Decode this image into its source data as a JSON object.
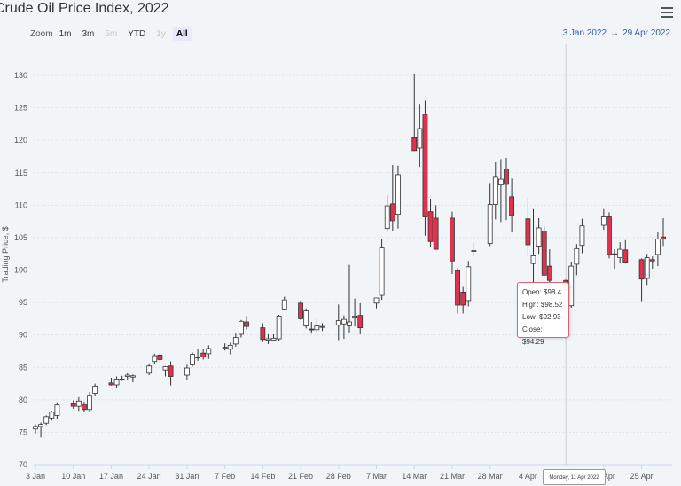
{
  "title": "Crude Oil Price Index, 2022",
  "zoom": {
    "label": "Zoom",
    "buttons": [
      {
        "label": "1m",
        "state": "normal"
      },
      {
        "label": "3m",
        "state": "normal"
      },
      {
        "label": "6m",
        "state": "disabled"
      },
      {
        "label": "YTD",
        "state": "normal"
      },
      {
        "label": "1y",
        "state": "disabled"
      },
      {
        "label": "All",
        "state": "selected"
      }
    ]
  },
  "range": {
    "from": "3 Jan 2022",
    "sep": "→",
    "to": "29 Apr 2022"
  },
  "menu_icon": "hamburger-menu-icon",
  "tooltip": {
    "open": "Open: $98.4",
    "high": "High: $98.52",
    "low": "Low: $92.93",
    "close": "Close: $94.29"
  },
  "crosshair_label": "Monday, 11 Apr 2022",
  "colors": {
    "up": "#ffffff",
    "down": "#e0324f",
    "outline": "#333333",
    "accent": "#335cad"
  },
  "chart_data": {
    "type": "candlestick",
    "title": "Crude Oil Price Index, 2022",
    "ylabel": "Trading Price, $",
    "ylim": [
      70,
      132
    ],
    "yticks": [
      70,
      75,
      80,
      85,
      90,
      95,
      100,
      105,
      110,
      115,
      120,
      125,
      130
    ],
    "xlim": [
      "2022-01-03",
      "2022-04-29"
    ],
    "xticks": [
      {
        "date": "2022-01-03",
        "label": "3 Jan"
      },
      {
        "date": "2022-01-10",
        "label": "10 Jan"
      },
      {
        "date": "2022-01-17",
        "label": "17 Jan"
      },
      {
        "date": "2022-01-24",
        "label": "24 Jan"
      },
      {
        "date": "2022-01-31",
        "label": "31 Jan"
      },
      {
        "date": "2022-02-07",
        "label": "7 Feb"
      },
      {
        "date": "2022-02-14",
        "label": "14 Feb"
      },
      {
        "date": "2022-02-21",
        "label": "21 Feb"
      },
      {
        "date": "2022-02-28",
        "label": "28 Feb"
      },
      {
        "date": "2022-03-07",
        "label": "7 Mar"
      },
      {
        "date": "2022-03-14",
        "label": "14 Mar"
      },
      {
        "date": "2022-03-21",
        "label": "21 Mar"
      },
      {
        "date": "2022-03-28",
        "label": "28 Mar"
      },
      {
        "date": "2022-04-04",
        "label": "4 Apr"
      },
      {
        "date": "2022-04-18",
        "label": "18 Apr"
      },
      {
        "date": "2022-04-25",
        "label": "25 Apr"
      }
    ],
    "grid": true,
    "crosshair_date": "2022-04-11",
    "columns": [
      "date",
      "open",
      "high",
      "low",
      "close"
    ],
    "series": [
      [
        "2022-01-03",
        75.5,
        76.2,
        74.8,
        75.9
      ],
      [
        "2022-01-04",
        75.9,
        76.5,
        74.2,
        76.2
      ],
      [
        "2022-01-05",
        76.4,
        77.6,
        76.1,
        77.4
      ],
      [
        "2022-01-06",
        77.2,
        78.3,
        76.8,
        78.1
      ],
      [
        "2022-01-07",
        77.6,
        79.6,
        77.1,
        79.2
      ],
      [
        "2022-01-10",
        79.5,
        79.9,
        78.6,
        79.0
      ],
      [
        "2022-01-11",
        79.0,
        80.4,
        78.3,
        79.8
      ],
      [
        "2022-01-12",
        79.3,
        79.7,
        78.2,
        78.5
      ],
      [
        "2022-01-13",
        78.5,
        81.2,
        78.1,
        80.7
      ],
      [
        "2022-01-14",
        81.0,
        82.5,
        80.6,
        82.1
      ],
      [
        "2022-01-17",
        82.6,
        83.4,
        82.2,
        82.3
      ],
      [
        "2022-01-18",
        82.3,
        83.6,
        81.9,
        83.2
      ],
      [
        "2022-01-19",
        83.2,
        83.7,
        82.9,
        83.1
      ],
      [
        "2022-01-20",
        83.6,
        84.1,
        83.1,
        83.8
      ],
      [
        "2022-01-21",
        83.5,
        83.9,
        82.7,
        83.7
      ],
      [
        "2022-01-24",
        84.1,
        85.6,
        83.8,
        85.2
      ],
      [
        "2022-01-25",
        85.9,
        87.1,
        85.5,
        86.8
      ],
      [
        "2022-01-26",
        86.9,
        87.2,
        85.8,
        86.2
      ],
      [
        "2022-01-27",
        84.6,
        85.2,
        83.6,
        85.1
      ],
      [
        "2022-01-28",
        85.2,
        85.9,
        82.2,
        83.6
      ],
      [
        "2022-01-31",
        83.8,
        85.4,
        83.1,
        84.9
      ],
      [
        "2022-02-01",
        85.4,
        87.3,
        85.1,
        87.0
      ],
      [
        "2022-02-02",
        86.6,
        87.8,
        86.0,
        86.5
      ],
      [
        "2022-02-03",
        87.2,
        87.8,
        86.2,
        86.6
      ],
      [
        "2022-02-04",
        87.1,
        88.4,
        86.3,
        87.9
      ],
      [
        "2022-02-07",
        88.0,
        88.7,
        87.6,
        88.1
      ],
      [
        "2022-02-08",
        87.8,
        88.8,
        87.0,
        88.4
      ],
      [
        "2022-02-09",
        88.6,
        90.3,
        88.2,
        89.6
      ],
      [
        "2022-02-10",
        90.1,
        92.3,
        89.6,
        92.1
      ],
      [
        "2022-02-11",
        92.0,
        92.9,
        90.8,
        91.3
      ],
      [
        "2022-02-14",
        91.1,
        91.8,
        88.9,
        89.3
      ],
      [
        "2022-02-15",
        89.2,
        90.1,
        88.6,
        89.4
      ],
      [
        "2022-02-16",
        89.2,
        90.1,
        89.0,
        89.5
      ],
      [
        "2022-02-17",
        89.4,
        93.1,
        89.1,
        92.9
      ],
      [
        "2022-02-18",
        94.0,
        95.9,
        93.8,
        95.4
      ],
      [
        "2022-02-21",
        94.9,
        95.3,
        92.3,
        92.5
      ],
      [
        "2022-02-22",
        91.4,
        94.1,
        91.0,
        93.7
      ],
      [
        "2022-02-23",
        90.9,
        92.0,
        90.2,
        90.8
      ],
      [
        "2022-02-24",
        90.8,
        92.5,
        90.3,
        91.4
      ],
      [
        "2022-02-25",
        91.2,
        91.8,
        90.6,
        91.3
      ],
      [
        "2022-02-28",
        91.5,
        94.7,
        89.2,
        92.2
      ],
      [
        "2022-03-01",
        91.7,
        93.0,
        89.4,
        92.4
      ],
      [
        "2022-03-02",
        91.4,
        100.8,
        90.4,
        92.0
      ],
      [
        "2022-03-03",
        92.6,
        95.6,
        91.3,
        92.9
      ],
      [
        "2022-03-04",
        93.0,
        94.9,
        90.1,
        91.1
      ],
      [
        "2022-03-07",
        94.9,
        95.7,
        94.1,
        95.7
      ],
      [
        "2022-03-08",
        96.1,
        104.8,
        95.4,
        103.4
      ],
      [
        "2022-03-09",
        106.4,
        111.5,
        105.9,
        109.9
      ],
      [
        "2022-03-10",
        110.2,
        116.2,
        106.0,
        107.6
      ],
      [
        "2022-03-11",
        108.6,
        116.1,
        106.4,
        114.7
      ],
      [
        "2022-03-14",
        120.4,
        130.2,
        118.5,
        118.4
      ],
      [
        "2022-03-15",
        118.8,
        125.6,
        115.9,
        121.8
      ],
      [
        "2022-03-16",
        124.0,
        126.1,
        105.3,
        108.2
      ],
      [
        "2022-03-17",
        109.0,
        111.0,
        103.6,
        104.4
      ],
      [
        "2022-03-18",
        108.0,
        110.0,
        103.4,
        103.2
      ],
      [
        "2022-03-21",
        108.0,
        109.0,
        99.4,
        101.4
      ],
      [
        "2022-03-22",
        99.9,
        100.3,
        93.3,
        94.6
      ],
      [
        "2022-03-23",
        96.6,
        97.4,
        93.3,
        94.6
      ],
      [
        "2022-03-24",
        95.3,
        101.4,
        94.4,
        100.5
      ],
      [
        "2022-03-25",
        102.9,
        104.2,
        102.1,
        103.0
      ],
      [
        "2022-03-28",
        104.1,
        113.4,
        103.7,
        110.1
      ],
      [
        "2022-03-29",
        110.1,
        116.6,
        107.8,
        114.3
      ],
      [
        "2022-03-30",
        113.1,
        117.1,
        107.4,
        114.0
      ],
      [
        "2022-03-31",
        115.6,
        117.3,
        107.7,
        113.2
      ],
      [
        "2022-04-01",
        111.3,
        114.1,
        105.8,
        108.4
      ],
      [
        "2022-04-04",
        107.9,
        111.1,
        102.2,
        103.9
      ],
      [
        "2022-04-05",
        101.0,
        109.4,
        97.7,
        102.2
      ],
      [
        "2022-04-06",
        103.7,
        108.0,
        102.5,
        106.5
      ],
      [
        "2022-04-07",
        106.0,
        106.7,
        100.0,
        99.2
      ],
      [
        "2022-04-08",
        100.6,
        103.2,
        96.6,
        98.4
      ],
      [
        "2022-04-11",
        98.4,
        98.52,
        92.93,
        94.29
      ],
      [
        "2022-04-12",
        94.5,
        101.3,
        94.2,
        100.6
      ],
      [
        "2022-04-13",
        100.9,
        104.0,
        99.2,
        103.3
      ],
      [
        "2022-04-14",
        103.8,
        107.9,
        102.6,
        106.8
      ],
      [
        "2022-04-18",
        106.9,
        109.4,
        106.2,
        108.2
      ],
      [
        "2022-04-19",
        108.2,
        108.9,
        101.8,
        102.4
      ],
      [
        "2022-04-20",
        102.5,
        103.2,
        100.2,
        102.4
      ],
      [
        "2022-04-21",
        101.9,
        104.3,
        101.0,
        103.2
      ],
      [
        "2022-04-22",
        103.1,
        104.6,
        101.0,
        101.2
      ],
      [
        "2022-04-25",
        101.6,
        101.8,
        95.2,
        98.6
      ],
      [
        "2022-04-26",
        98.7,
        102.5,
        97.7,
        101.9
      ],
      [
        "2022-04-27",
        101.6,
        102.1,
        100.2,
        101.4
      ],
      [
        "2022-04-28",
        102.4,
        105.8,
        100.6,
        104.8
      ],
      [
        "2022-04-29",
        105.1,
        108.0,
        103.7,
        104.8
      ]
    ]
  }
}
